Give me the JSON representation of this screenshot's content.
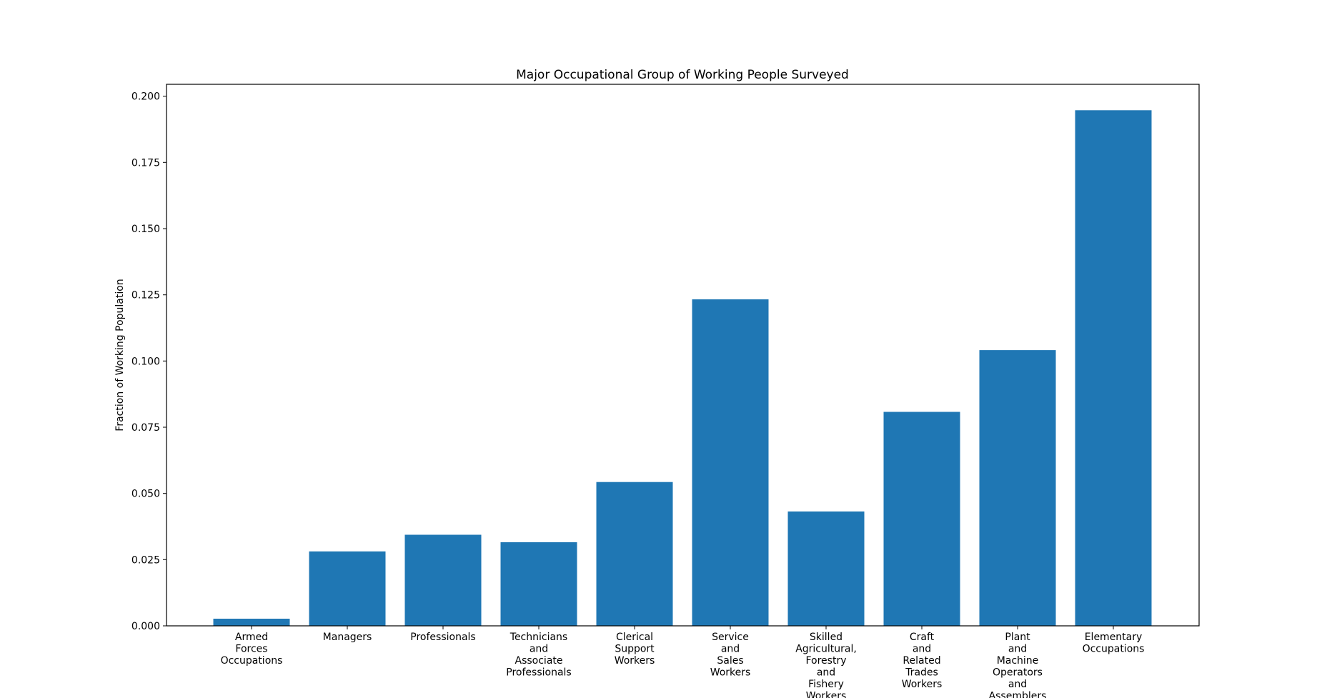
{
  "chart_data": {
    "type": "bar",
    "title": "Major Occupational Group of Working People Surveyed",
    "xlabel": "",
    "ylabel": "Fraction of Working Population",
    "categories": [
      "Armed\nForces\nOccupations",
      "Managers",
      "Professionals",
      "Technicians\nand\nAssociate\nProfessionals",
      "Clerical\nSupport\nWorkers",
      "Service\nand\nSales\nWorkers",
      "Skilled\nAgricultural,\nForestry\nand\nFishery\nWorkers",
      "Craft\nand\nRelated\nTrades\nWorkers",
      "Plant\nand\nMachine\nOperators\nand\nAssemblers",
      "Elementary\nOccupations"
    ],
    "values": [
      0.0027,
      0.0281,
      0.0344,
      0.0316,
      0.0543,
      0.1233,
      0.0432,
      0.0808,
      0.1041,
      0.1947
    ],
    "ylim": [
      0,
      0.2045
    ],
    "yticks": [
      "0.000",
      "0.025",
      "0.050",
      "0.075",
      "0.100",
      "0.125",
      "0.150",
      "0.175",
      "0.200"
    ],
    "ytick_values": [
      0,
      0.025,
      0.05,
      0.075,
      0.1,
      0.125,
      0.15,
      0.175,
      0.2
    ],
    "bar_color": "#1f77b4",
    "grid": false,
    "legend": "none"
  }
}
